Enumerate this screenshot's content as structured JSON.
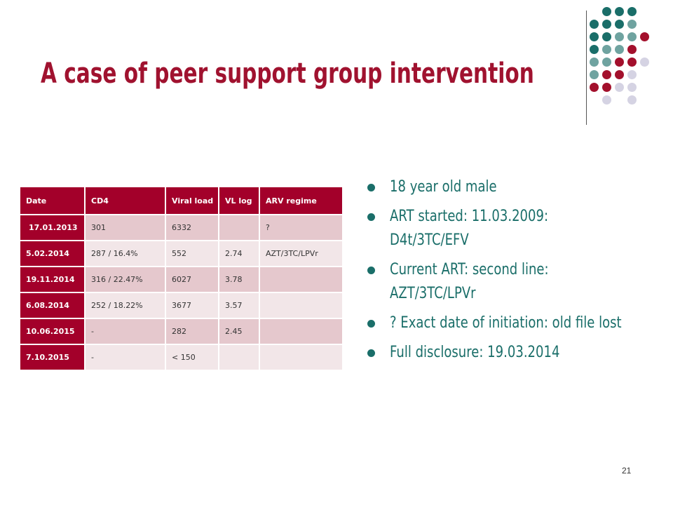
{
  "slide": {
    "title": "A case of peer support group intervention",
    "page_number": "21"
  },
  "colors": {
    "title": "#a0122f",
    "header_bg": "#a3002a",
    "row_odd": "#e5c8cd",
    "row_even": "#f2e6e8",
    "bullet_text": "#1a6e69",
    "dot_teal": "#1a6e69",
    "dot_grey_teal": "#6fa3a0",
    "dot_crimson": "#a3102c",
    "dot_lavender": "#d5d3e3"
  },
  "table": {
    "headers": [
      "Date",
      "CD4",
      "Viral load",
      "VL log",
      "ARV regime"
    ],
    "rows": [
      [
        "17.01.2013",
        "301",
        "6332",
        "",
        "?"
      ],
      [
        "5.02.2014",
        "287 / 16.4%",
        "552",
        "2.74",
        "AZT/3TC/LPVr"
      ],
      [
        "19.11.2014",
        "316 / 22.47%",
        "6027",
        "3.78",
        ""
      ],
      [
        "6.08.2014",
        "252 / 18.22%",
        "3677",
        "3.57",
        ""
      ],
      [
        "10.06.2015",
        "-",
        "282",
        "2.45",
        ""
      ],
      [
        "7.10.2015",
        "-",
        "< 150",
        "",
        ""
      ]
    ]
  },
  "bullets": [
    "18 year old male",
    "ART started: 11.03.2009: D4t/3TC/EFV",
    "Current ART: second line: AZT/3TC/LPVr",
    "? Exact date of initiation: old file lost",
    "Full disclosure: 19.03.2014"
  ]
}
